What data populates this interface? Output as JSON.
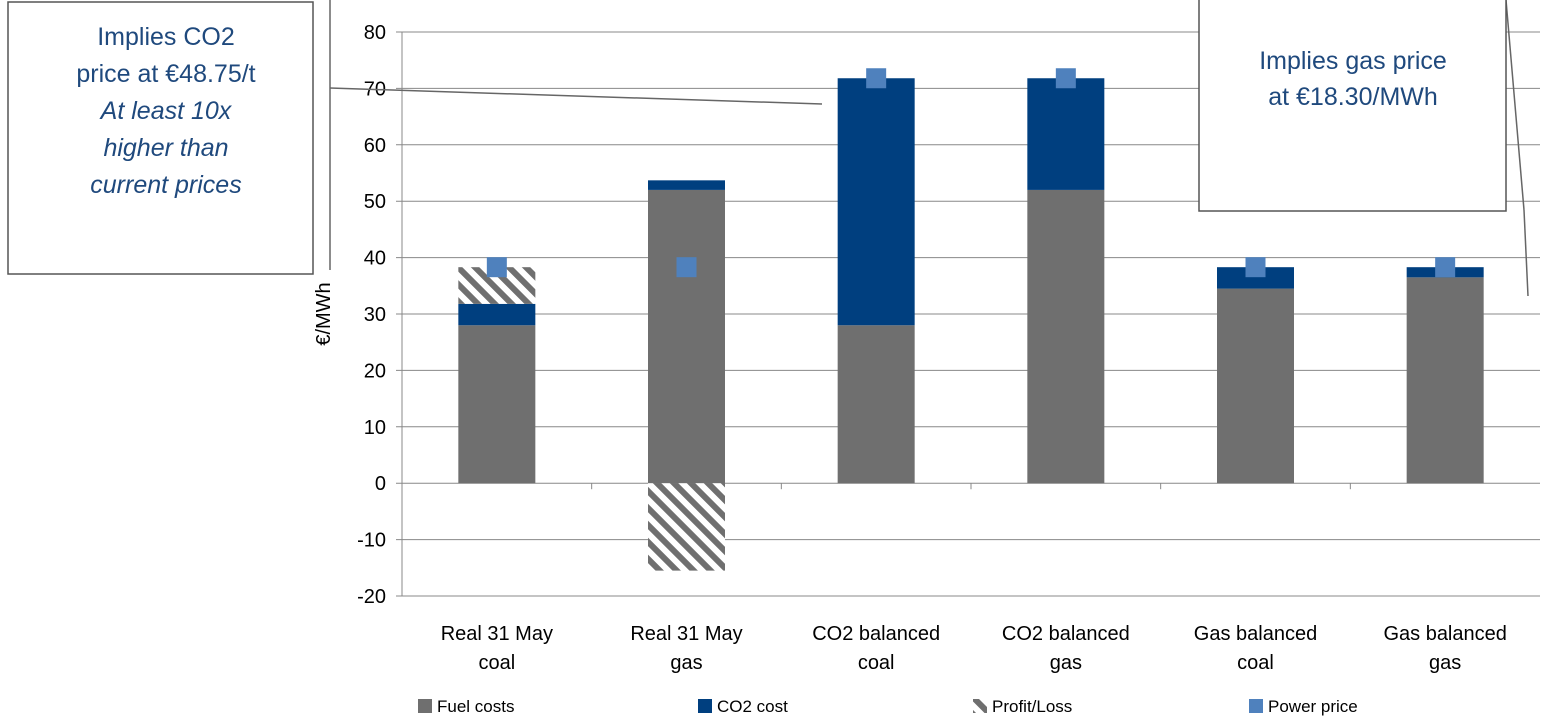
{
  "colors": {
    "fuel": "#6f6f6f",
    "co2": "#003f7f",
    "hatch": "#6f6f6f",
    "power": "#4f81bd",
    "grid": "#888888",
    "callout_border": "#555555",
    "callout_text": "#1f497d"
  },
  "chart_data": {
    "type": "bar",
    "stacked": true,
    "ylabel": "€/MWh",
    "ylim": [
      -20,
      80
    ],
    "yticks": [
      -20,
      -10,
      0,
      10,
      20,
      30,
      40,
      50,
      60,
      70,
      80
    ],
    "grid": true,
    "categories": [
      [
        "Real 31 May",
        "coal"
      ],
      [
        "Real 31 May",
        "gas"
      ],
      [
        "CO2 balanced",
        "coal"
      ],
      [
        "CO2 balanced",
        "gas"
      ],
      [
        "Gas balanced",
        "coal"
      ],
      [
        "Gas balanced",
        "gas"
      ]
    ],
    "series": [
      {
        "name": "Fuel costs",
        "key": "fuel",
        "kind": "bar",
        "values": [
          28,
          52,
          28,
          52,
          34.5,
          36.5
        ]
      },
      {
        "name": "CO2 cost",
        "key": "co2",
        "kind": "bar",
        "values": [
          3.8,
          1.7,
          43.8,
          19.8,
          3.8,
          1.8
        ]
      },
      {
        "name": "Profit/Loss",
        "key": "hatch",
        "kind": "bar",
        "values": [
          6.5,
          -15.5,
          0,
          0,
          0,
          0
        ]
      },
      {
        "name": "Power price",
        "key": "power",
        "kind": "marker",
        "values": [
          38.3,
          38.3,
          71.8,
          71.8,
          38.3,
          38.3
        ]
      }
    ],
    "legend_position": "bottom",
    "annotations": {
      "left": {
        "lines": [
          {
            "text": "Implies CO2",
            "italic": false
          },
          {
            "text": "price at €48.75/t",
            "italic": false
          },
          {
            "text": "At least 10x",
            "italic": true
          },
          {
            "text": "higher than",
            "italic": true
          },
          {
            "text": "current prices",
            "italic": true
          }
        ]
      },
      "right": {
        "lines": [
          {
            "text": "Implies gas price",
            "italic": false
          },
          {
            "text": "at €18.30/MWh",
            "italic": false
          }
        ]
      }
    }
  }
}
